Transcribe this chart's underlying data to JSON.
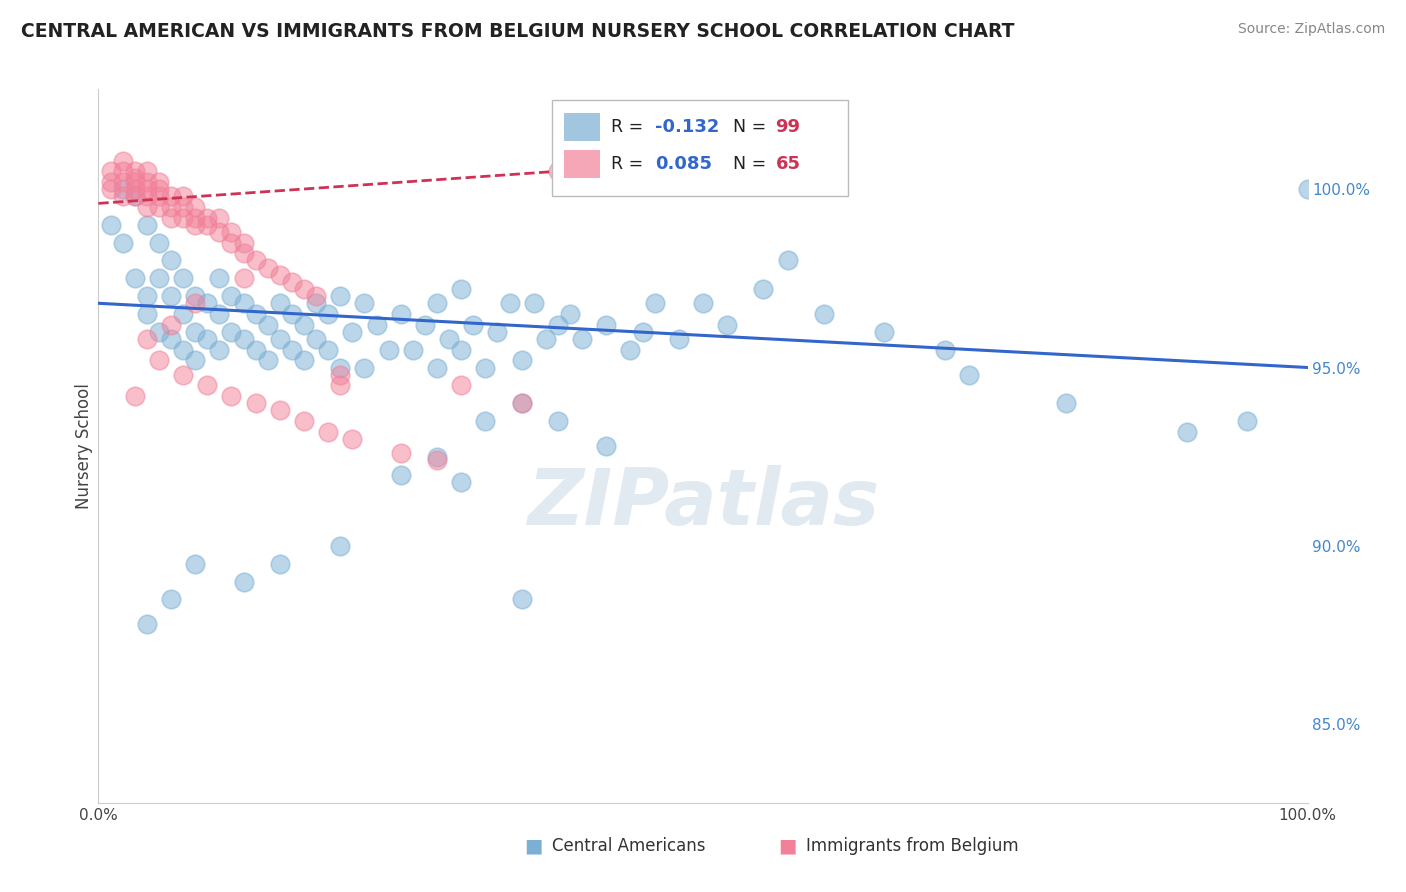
{
  "title": "CENTRAL AMERICAN VS IMMIGRANTS FROM BELGIUM NURSERY SCHOOL CORRELATION CHART",
  "source": "Source: ZipAtlas.com",
  "ylabel": "Nursery School",
  "xlim": [
    0.0,
    1.0
  ],
  "ylim": [
    0.828,
    1.028
  ],
  "yticks_right": [
    0.85,
    0.9,
    0.95,
    1.0
  ],
  "ytick_right_labels": [
    "85.0%",
    "90.0%",
    "95.0%",
    "100.0%"
  ],
  "xticks": [
    0.0,
    0.2,
    0.4,
    0.6,
    0.8,
    1.0
  ],
  "xtick_labels": [
    "0.0%",
    "",
    "",
    "",
    "",
    "100.0%"
  ],
  "grid_color": "#cccccc",
  "blue_color": "#7bafd4",
  "pink_color": "#f28099",
  "blue_trend_x": [
    0.0,
    1.0
  ],
  "blue_trend_y": [
    0.968,
    0.95
  ],
  "pink_trend_x": [
    0.0,
    0.38
  ],
  "pink_trend_y": [
    0.996,
    1.005
  ],
  "blue_scatter_x": [
    0.01,
    0.02,
    0.02,
    0.03,
    0.03,
    0.04,
    0.04,
    0.04,
    0.05,
    0.05,
    0.05,
    0.06,
    0.06,
    0.06,
    0.07,
    0.07,
    0.07,
    0.08,
    0.08,
    0.08,
    0.09,
    0.09,
    0.1,
    0.1,
    0.1,
    0.11,
    0.11,
    0.12,
    0.12,
    0.13,
    0.13,
    0.14,
    0.14,
    0.15,
    0.15,
    0.16,
    0.16,
    0.17,
    0.17,
    0.18,
    0.18,
    0.19,
    0.19,
    0.2,
    0.2,
    0.21,
    0.22,
    0.22,
    0.23,
    0.24,
    0.25,
    0.26,
    0.27,
    0.28,
    0.28,
    0.29,
    0.3,
    0.3,
    0.31,
    0.32,
    0.33,
    0.34,
    0.35,
    0.36,
    0.37,
    0.38,
    0.39,
    0.4,
    0.42,
    0.44,
    0.45,
    0.46,
    0.48,
    0.5,
    0.52,
    0.55,
    0.57,
    0.6,
    0.65,
    0.7,
    0.72,
    0.8,
    0.9,
    0.95,
    1.0,
    0.35,
    0.32,
    0.28,
    0.25,
    0.38,
    0.42,
    0.3,
    0.2,
    0.15,
    0.12,
    0.08,
    0.06,
    0.04,
    0.35
  ],
  "blue_scatter_y": [
    0.99,
    0.985,
    1.0,
    0.975,
    0.998,
    0.97,
    0.965,
    0.99,
    0.96,
    0.985,
    0.975,
    0.958,
    0.97,
    0.98,
    0.955,
    0.965,
    0.975,
    0.96,
    0.97,
    0.952,
    0.968,
    0.958,
    0.975,
    0.965,
    0.955,
    0.97,
    0.96,
    0.968,
    0.958,
    0.965,
    0.955,
    0.962,
    0.952,
    0.968,
    0.958,
    0.965,
    0.955,
    0.962,
    0.952,
    0.968,
    0.958,
    0.965,
    0.955,
    0.97,
    0.95,
    0.96,
    0.968,
    0.95,
    0.962,
    0.955,
    0.965,
    0.955,
    0.962,
    0.968,
    0.95,
    0.958,
    0.972,
    0.955,
    0.962,
    0.95,
    0.96,
    0.968,
    0.952,
    0.968,
    0.958,
    0.962,
    0.965,
    0.958,
    0.962,
    0.955,
    0.96,
    0.968,
    0.958,
    0.968,
    0.962,
    0.972,
    0.98,
    0.965,
    0.96,
    0.955,
    0.948,
    0.94,
    0.932,
    0.935,
    1.0,
    0.94,
    0.935,
    0.925,
    0.92,
    0.935,
    0.928,
    0.918,
    0.9,
    0.895,
    0.89,
    0.895,
    0.885,
    0.878,
    0.885
  ],
  "pink_scatter_x": [
    0.01,
    0.01,
    0.01,
    0.02,
    0.02,
    0.02,
    0.02,
    0.03,
    0.03,
    0.03,
    0.03,
    0.03,
    0.04,
    0.04,
    0.04,
    0.04,
    0.04,
    0.05,
    0.05,
    0.05,
    0.05,
    0.06,
    0.06,
    0.06,
    0.07,
    0.07,
    0.07,
    0.08,
    0.08,
    0.08,
    0.09,
    0.09,
    0.1,
    0.1,
    0.11,
    0.11,
    0.12,
    0.12,
    0.13,
    0.14,
    0.15,
    0.16,
    0.17,
    0.18,
    0.2,
    0.12,
    0.08,
    0.06,
    0.04,
    0.03,
    0.05,
    0.07,
    0.09,
    0.11,
    0.13,
    0.15,
    0.17,
    0.19,
    0.21,
    0.25,
    0.28,
    0.3,
    0.35,
    0.2,
    0.38
  ],
  "pink_scatter_y": [
    1.005,
    1.002,
    1.0,
    0.998,
    1.002,
    1.005,
    1.008,
    1.005,
    1.002,
    0.998,
    1.0,
    1.003,
    1.005,
    1.002,
    0.998,
    0.995,
    1.0,
    1.002,
    0.998,
    0.995,
    1.0,
    0.998,
    0.995,
    0.992,
    0.998,
    0.995,
    0.992,
    0.995,
    0.992,
    0.99,
    0.992,
    0.99,
    0.992,
    0.988,
    0.988,
    0.985,
    0.985,
    0.982,
    0.98,
    0.978,
    0.976,
    0.974,
    0.972,
    0.97,
    0.945,
    0.975,
    0.968,
    0.962,
    0.958,
    0.942,
    0.952,
    0.948,
    0.945,
    0.942,
    0.94,
    0.938,
    0.935,
    0.932,
    0.93,
    0.926,
    0.924,
    0.945,
    0.94,
    0.948,
    1.005
  ]
}
